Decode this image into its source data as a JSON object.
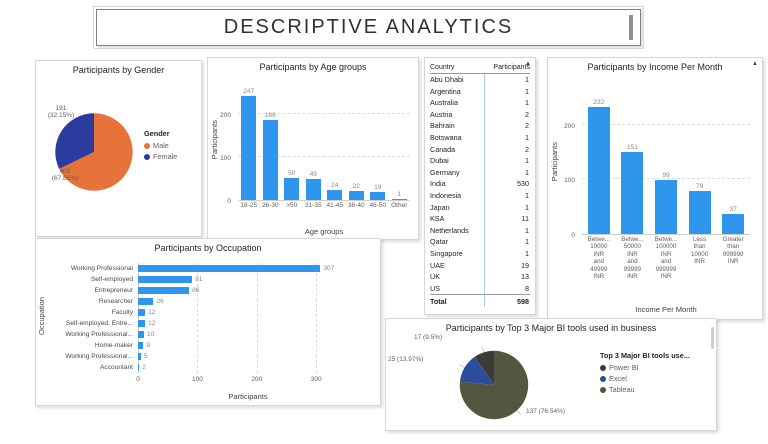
{
  "page": {
    "title": "DESCRIPTIVE ANALYTICS"
  },
  "icons": {
    "scroll_up": "▲"
  },
  "chart_data": [
    {
      "id": "gender",
      "type": "pie",
      "title": "Participants by Gender",
      "legend_title": "Gender",
      "legend_position": "right",
      "slices": [
        {
          "label": "Male",
          "value": 403,
          "pct": "67.85%",
          "callout": "403\n(67.85%)",
          "color": "#E8733A"
        },
        {
          "label": "Female",
          "value": 191,
          "pct": "32.15%",
          "callout": "191\n(32.15%)",
          "color": "#2B3B9E"
        }
      ],
      "counterclockwise": false,
      "leaders": false
    },
    {
      "id": "age",
      "type": "bar",
      "title": "Participants by Age groups",
      "xlabel": "Age groups",
      "ylabel": "Participants",
      "categories": [
        "18-25",
        "26-30",
        ">50",
        "31-35",
        "41-45",
        "36-40",
        "46-50",
        "Other"
      ],
      "values": [
        247,
        186,
        50,
        49,
        24,
        22,
        19,
        1
      ],
      "yticks": [
        0,
        100,
        200
      ],
      "ylim": [
        0,
        260
      ],
      "grid": "dashed-horizontal",
      "bar_color": "#2E96EC"
    },
    {
      "id": "country-table",
      "type": "table",
      "headers": [
        "Country",
        "Participants"
      ],
      "rows": [
        [
          "Abu Dhabi",
          "1"
        ],
        [
          "Argentina",
          "1"
        ],
        [
          "Australia",
          "1"
        ],
        [
          "Austria",
          "2"
        ],
        [
          "Bahrain",
          "2"
        ],
        [
          "Botswana",
          "1"
        ],
        [
          "Canada",
          "2"
        ],
        [
          "Dubai",
          "1"
        ],
        [
          "Germany",
          "1"
        ],
        [
          "India",
          "530"
        ],
        [
          "Indonesia",
          "1"
        ],
        [
          "Japan",
          "1"
        ],
        [
          "KSA",
          "11"
        ],
        [
          "Netherlands",
          "1"
        ],
        [
          "Qatar",
          "1"
        ],
        [
          "Singapore",
          "1"
        ],
        [
          "UAE",
          "19"
        ],
        [
          "UK",
          "13"
        ],
        [
          "US",
          "8"
        ]
      ],
      "total_row": [
        "Total",
        "598"
      ]
    },
    {
      "id": "income",
      "type": "bar",
      "title": "Participants by Income Per Month",
      "xlabel": "Income Per Month",
      "ylabel": "Participants",
      "categories": [
        "Betwe...\n10000\nINR\nand\n49999\nINR",
        "Betwe...\n50000\nINR\nand\n99999\nINR",
        "Betwe...\n100000\nINR\nand\n999999\nINR",
        "Less\nthan\n10000\nINR",
        "Greater\nthan\n999999\nINR"
      ],
      "values": [
        232,
        151,
        99,
        79,
        37
      ],
      "yticks": [
        0,
        100,
        200
      ],
      "ylim": [
        0,
        260
      ],
      "grid": "dashed-horizontal",
      "bar_color": "#2E96EC"
    },
    {
      "id": "occupation",
      "type": "bar-horizontal",
      "title": "Participants by Occupation",
      "xlabel": "Participants",
      "ylabel": "Occupation",
      "categories": [
        "Working Professional",
        "Self-employed",
        "Entrepreneur",
        "Researcher",
        "Faculty",
        "Self-employed, Entre...",
        "Working Professional...",
        "Home-maker",
        "Working Professional...",
        "Accountant"
      ],
      "values": [
        307,
        91,
        86,
        26,
        12,
        12,
        10,
        9,
        5,
        2
      ],
      "xticks": [
        0,
        100,
        200,
        300
      ],
      "xlim": [
        0,
        340
      ],
      "grid": "dashed-vertical",
      "bar_color": "#2E96EC"
    },
    {
      "id": "bitools",
      "type": "pie",
      "title": "Participants by Top 3 Major BI tools used in business",
      "legend_title": "Top 3 Major BI tools use...",
      "legend_position": "right",
      "slices": [
        {
          "label": "Power BI",
          "value": 17,
          "pct": "9.5%",
          "callout": "17 (9.5%)",
          "color": "#3B3B38"
        },
        {
          "label": "Excel",
          "value": 25,
          "pct": "13.97%",
          "callout": "25 (13.97%)",
          "color": "#2C4C9C"
        },
        {
          "label": "Tableau",
          "value": 137,
          "pct": "76.54%",
          "callout": "137 (76.54%)",
          "color": "#55563F"
        }
      ],
      "counterclockwise": true,
      "leaders": true
    }
  ]
}
